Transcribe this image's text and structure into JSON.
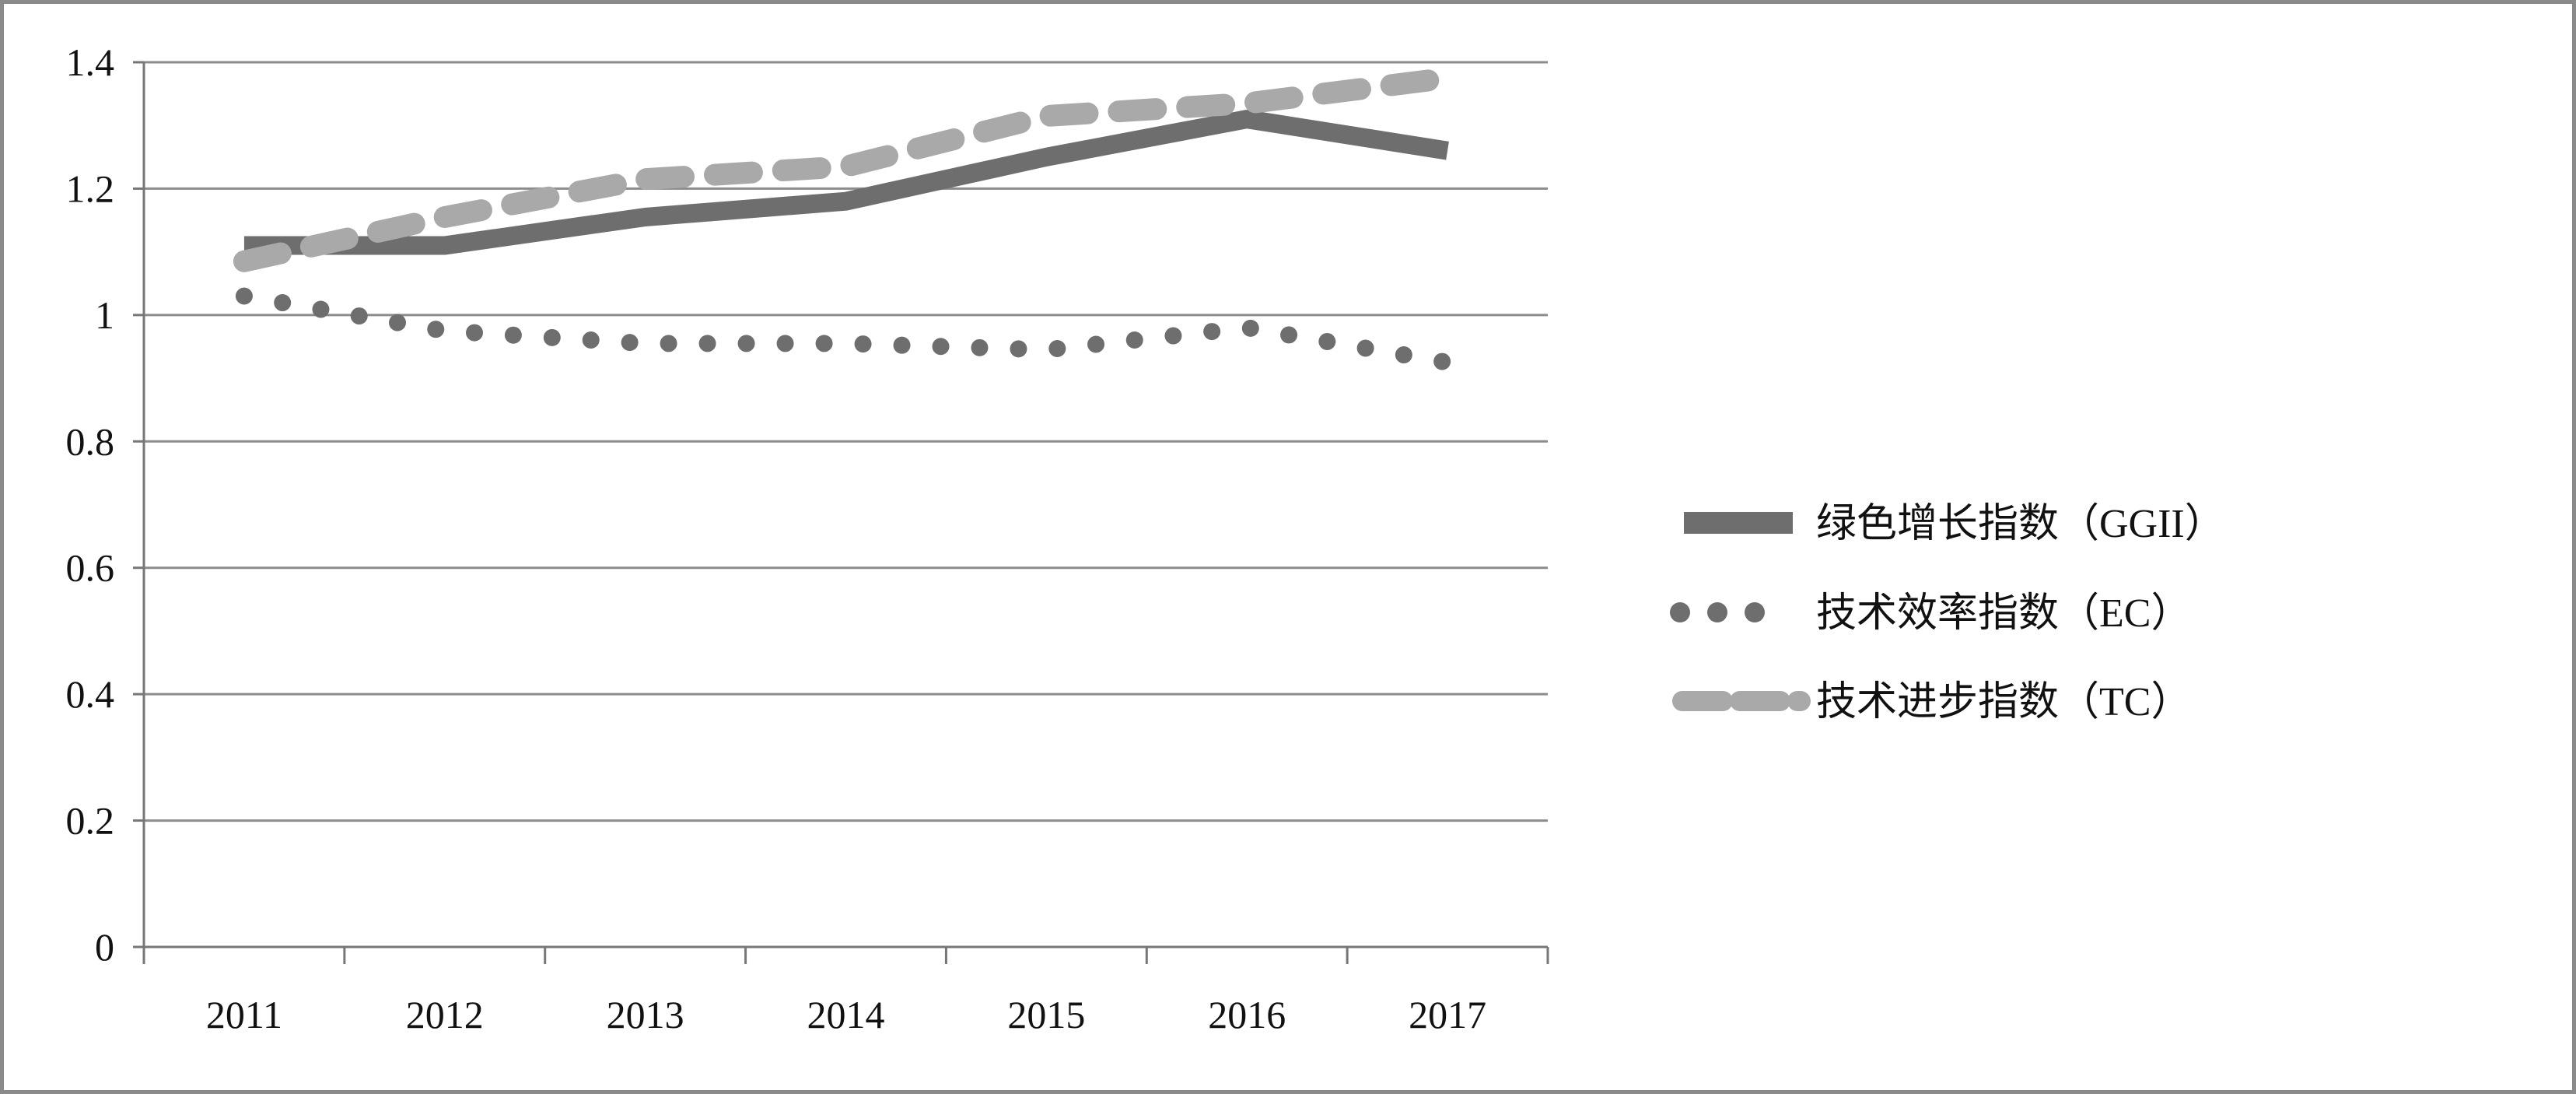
{
  "chart_data": {
    "type": "line",
    "title": "",
    "xlabel": "",
    "ylabel": "",
    "categories": [
      "2011",
      "2012",
      "2013",
      "2014",
      "2015",
      "2016",
      "2017"
    ],
    "ylim": [
      0,
      1.4
    ],
    "yticks": [
      "0",
      "0.2",
      "0.4",
      "0.6",
      "0.8",
      "1",
      "1.2",
      "1.4"
    ],
    "grid": true,
    "legend_position": "right",
    "series": [
      {
        "name": "绿色增长指数（GGII）",
        "values": [
          1.11,
          1.11,
          1.155,
          1.18,
          1.25,
          1.31,
          1.26
        ],
        "color": "#6e6e6e",
        "style": "solid"
      },
      {
        "name": "技术效率指数（EC）",
        "values": [
          1.03,
          0.975,
          0.955,
          0.955,
          0.945,
          0.98,
          0.925
        ],
        "color": "#6e6e6e",
        "style": "dotted"
      },
      {
        "name": "技术进步指数（TC）",
        "values": [
          1.085,
          1.155,
          1.215,
          1.235,
          1.315,
          1.335,
          1.375
        ],
        "color": "#a9a9a9",
        "style": "dashed"
      }
    ]
  }
}
